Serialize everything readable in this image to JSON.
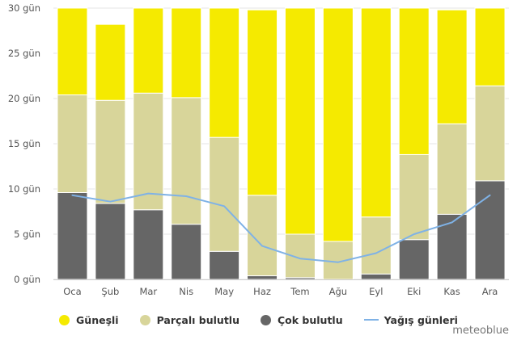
{
  "chart_data": {
    "type": "bar",
    "stacked": true,
    "categories": [
      "Oca",
      "Şub",
      "Mar",
      "Nis",
      "May",
      "Haz",
      "Tem",
      "Ağu",
      "Eyl",
      "Eki",
      "Kas",
      "Ara"
    ],
    "ylim": [
      0,
      30
    ],
    "yticks": [
      "0 gün",
      "5 gün",
      "10 gün",
      "15 gün",
      "20 gün",
      "25 gün",
      "30 gün"
    ],
    "ytick_values": [
      0,
      5,
      10,
      15,
      20,
      25,
      30
    ],
    "series": [
      {
        "name": "Çok bulutlu",
        "type": "bar",
        "color": "#666666",
        "values": [
          9.6,
          8.4,
          7.7,
          6.1,
          3.1,
          0.4,
          0.2,
          0.0,
          0.6,
          4.4,
          7.2,
          10.9
        ]
      },
      {
        "name": "Parçalı bulutlu",
        "type": "bar",
        "color": "#d8d59a",
        "values": [
          10.8,
          11.4,
          12.9,
          14.0,
          12.6,
          8.9,
          4.8,
          4.2,
          6.3,
          9.4,
          10.0,
          10.5
        ]
      },
      {
        "name": "Güneşli",
        "type": "bar",
        "color": "#f5ea00",
        "values": [
          9.6,
          8.4,
          9.4,
          9.9,
          14.3,
          20.5,
          25.0,
          25.8,
          23.1,
          16.2,
          12.6,
          8.6
        ]
      },
      {
        "name": "Yağış günleri",
        "type": "line",
        "color": "#7fb2e6",
        "values": [
          9.3,
          8.6,
          9.5,
          9.2,
          8.1,
          3.7,
          2.3,
          1.9,
          2.9,
          5.0,
          6.3,
          9.3
        ]
      }
    ],
    "legend": [
      {
        "label": "Güneşli",
        "color": "#f5ea00",
        "kind": "dot"
      },
      {
        "label": "Parçalı bulutlu",
        "color": "#d8d59a",
        "kind": "dot"
      },
      {
        "label": "Çok bulutlu",
        "color": "#666666",
        "kind": "dot"
      },
      {
        "label": "Yağış günleri",
        "color": "#7fb2e6",
        "kind": "line"
      }
    ],
    "grid": true
  },
  "credit": "meteoblue"
}
